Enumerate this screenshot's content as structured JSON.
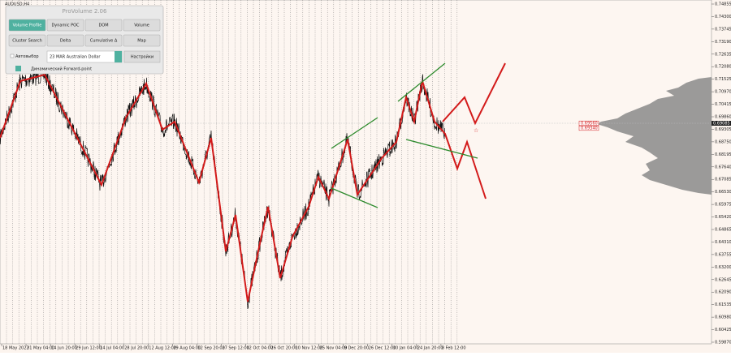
{
  "window": {
    "symbol": "AUDUSD,H4"
  },
  "panel": {
    "title": "ProVolume 2.06",
    "buttons": [
      "Volume Profile",
      "Dynamic POC",
      "DOM",
      "Volume",
      "Cluster Search",
      "Delta",
      "Cumulative Δ",
      "Map"
    ],
    "auto_select": "Автовыбор",
    "instrument": "23 MAR Australian Dollar",
    "settings": "Настройки",
    "forward_point": "Динамический Forward-point"
  },
  "price_axis": {
    "labels": [
      "0.74855",
      "0.74300",
      "0.73745",
      "0.73190",
      "0.72635",
      "0.72080",
      "0.71525",
      "0.70970",
      "0.70415",
      "0.69860",
      "0.69305",
      "0.68750",
      "0.68195",
      "0.67640",
      "0.67085",
      "0.66530",
      "0.65975",
      "0.65420",
      "0.64865",
      "0.64310",
      "0.63755",
      "0.63200",
      "0.62645",
      "0.62090",
      "0.61535",
      "0.60980",
      "0.60425",
      "0.59870"
    ],
    "current_price": "0.69085"
  },
  "level_labels": [
    "0.69560",
    "0.69340"
  ],
  "time_axis": {
    "labels": [
      "18 May 2022",
      "31 May 04:00",
      "14 Jun 20:00",
      "29 Jun 12:00",
      "14 Jul 04:00",
      "28 Jul 20:00",
      "12 Aug 12:00",
      "29 Aug 04:00",
      "12 Sep 20:00",
      "27 Sep 12:00",
      "12 Oct 04:00",
      "26 Oct 20:00",
      "10 Nov 12:00",
      "25 Nov 04:00",
      "9 Dec 20:00",
      "26 Dec 12:00",
      "10 Jan 04:00",
      "24 Jan 20:00",
      "8 Feb 12:00"
    ]
  }
}
